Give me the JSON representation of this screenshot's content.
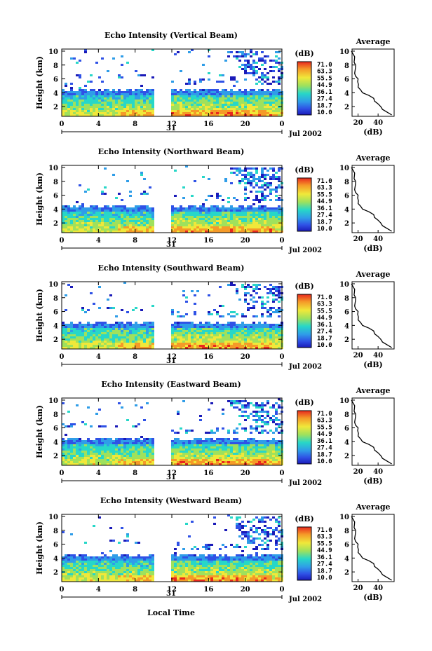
{
  "chart_data": {
    "type": "heatmap",
    "figure_xlabel": "Local Time",
    "date_label": "Jul 2002",
    "day_label": "31",
    "time_ticks": [
      "0",
      "4",
      "8",
      "12",
      "16",
      "20",
      "0"
    ],
    "time_range": [
      0,
      24
    ],
    "data_gap_hours": [
      10.2,
      11.8
    ],
    "ylabel": "Height (km)",
    "height_ticks": [
      "2",
      "4",
      "6",
      "8",
      "10"
    ],
    "height_range": [
      0.6,
      10.3
    ],
    "colorbar": {
      "unit": "(dB)",
      "levels": [
        "71.0",
        "63.3",
        "55.5",
        "44.9",
        "36.1",
        "27.4",
        "18.7",
        "10.0"
      ],
      "colors": [
        "#1a1ab8",
        "#2f52e6",
        "#2f9de8",
        "#27d7c8",
        "#9fe15c",
        "#f0e83a",
        "#f59a28",
        "#e8281e"
      ]
    },
    "average_panel": {
      "title": "Average",
      "xlabel": "(dB)",
      "x_ticks": [
        "20",
        "40"
      ],
      "x_range": [
        14,
        56
      ],
      "profile": [
        {
          "h": 10.0,
          "db": 14
        },
        {
          "h": 9.6,
          "db": 15
        },
        {
          "h": 9.2,
          "db": 16
        },
        {
          "h": 8.8,
          "db": 17
        },
        {
          "h": 8.4,
          "db": 16
        },
        {
          "h": 8.0,
          "db": 17
        },
        {
          "h": 7.6,
          "db": 18
        },
        {
          "h": 7.2,
          "db": 17
        },
        {
          "h": 6.8,
          "db": 16
        },
        {
          "h": 6.4,
          "db": 18
        },
        {
          "h": 6.0,
          "db": 20
        },
        {
          "h": 5.6,
          "db": 19
        },
        {
          "h": 5.2,
          "db": 21
        },
        {
          "h": 4.8,
          "db": 20
        },
        {
          "h": 4.4,
          "db": 22
        },
        {
          "h": 4.0,
          "db": 25
        },
        {
          "h": 3.6,
          "db": 31
        },
        {
          "h": 3.2,
          "db": 35
        },
        {
          "h": 2.8,
          "db": 37
        },
        {
          "h": 2.4,
          "db": 40
        },
        {
          "h": 2.0,
          "db": 42
        },
        {
          "h": 1.6,
          "db": 45
        },
        {
          "h": 1.2,
          "db": 49
        },
        {
          "h": 0.8,
          "db": 53
        }
      ]
    },
    "panels": [
      {
        "title": "Echo Intensity (Vertical Beam)",
        "date": "Jul 2002"
      },
      {
        "title": "Echo Intensity (Northward Beam)",
        "date": "Jul 2002"
      },
      {
        "title": "Echo Intensity (Southward Beam)",
        "date": "Jul 2002"
      },
      {
        "title": "Echo Intensity (Eastward Beam)",
        "date": "Jul 2002"
      },
      {
        "title": "Echo Intensity (Westward Beam)",
        "date": "Jul 2002"
      }
    ]
  }
}
